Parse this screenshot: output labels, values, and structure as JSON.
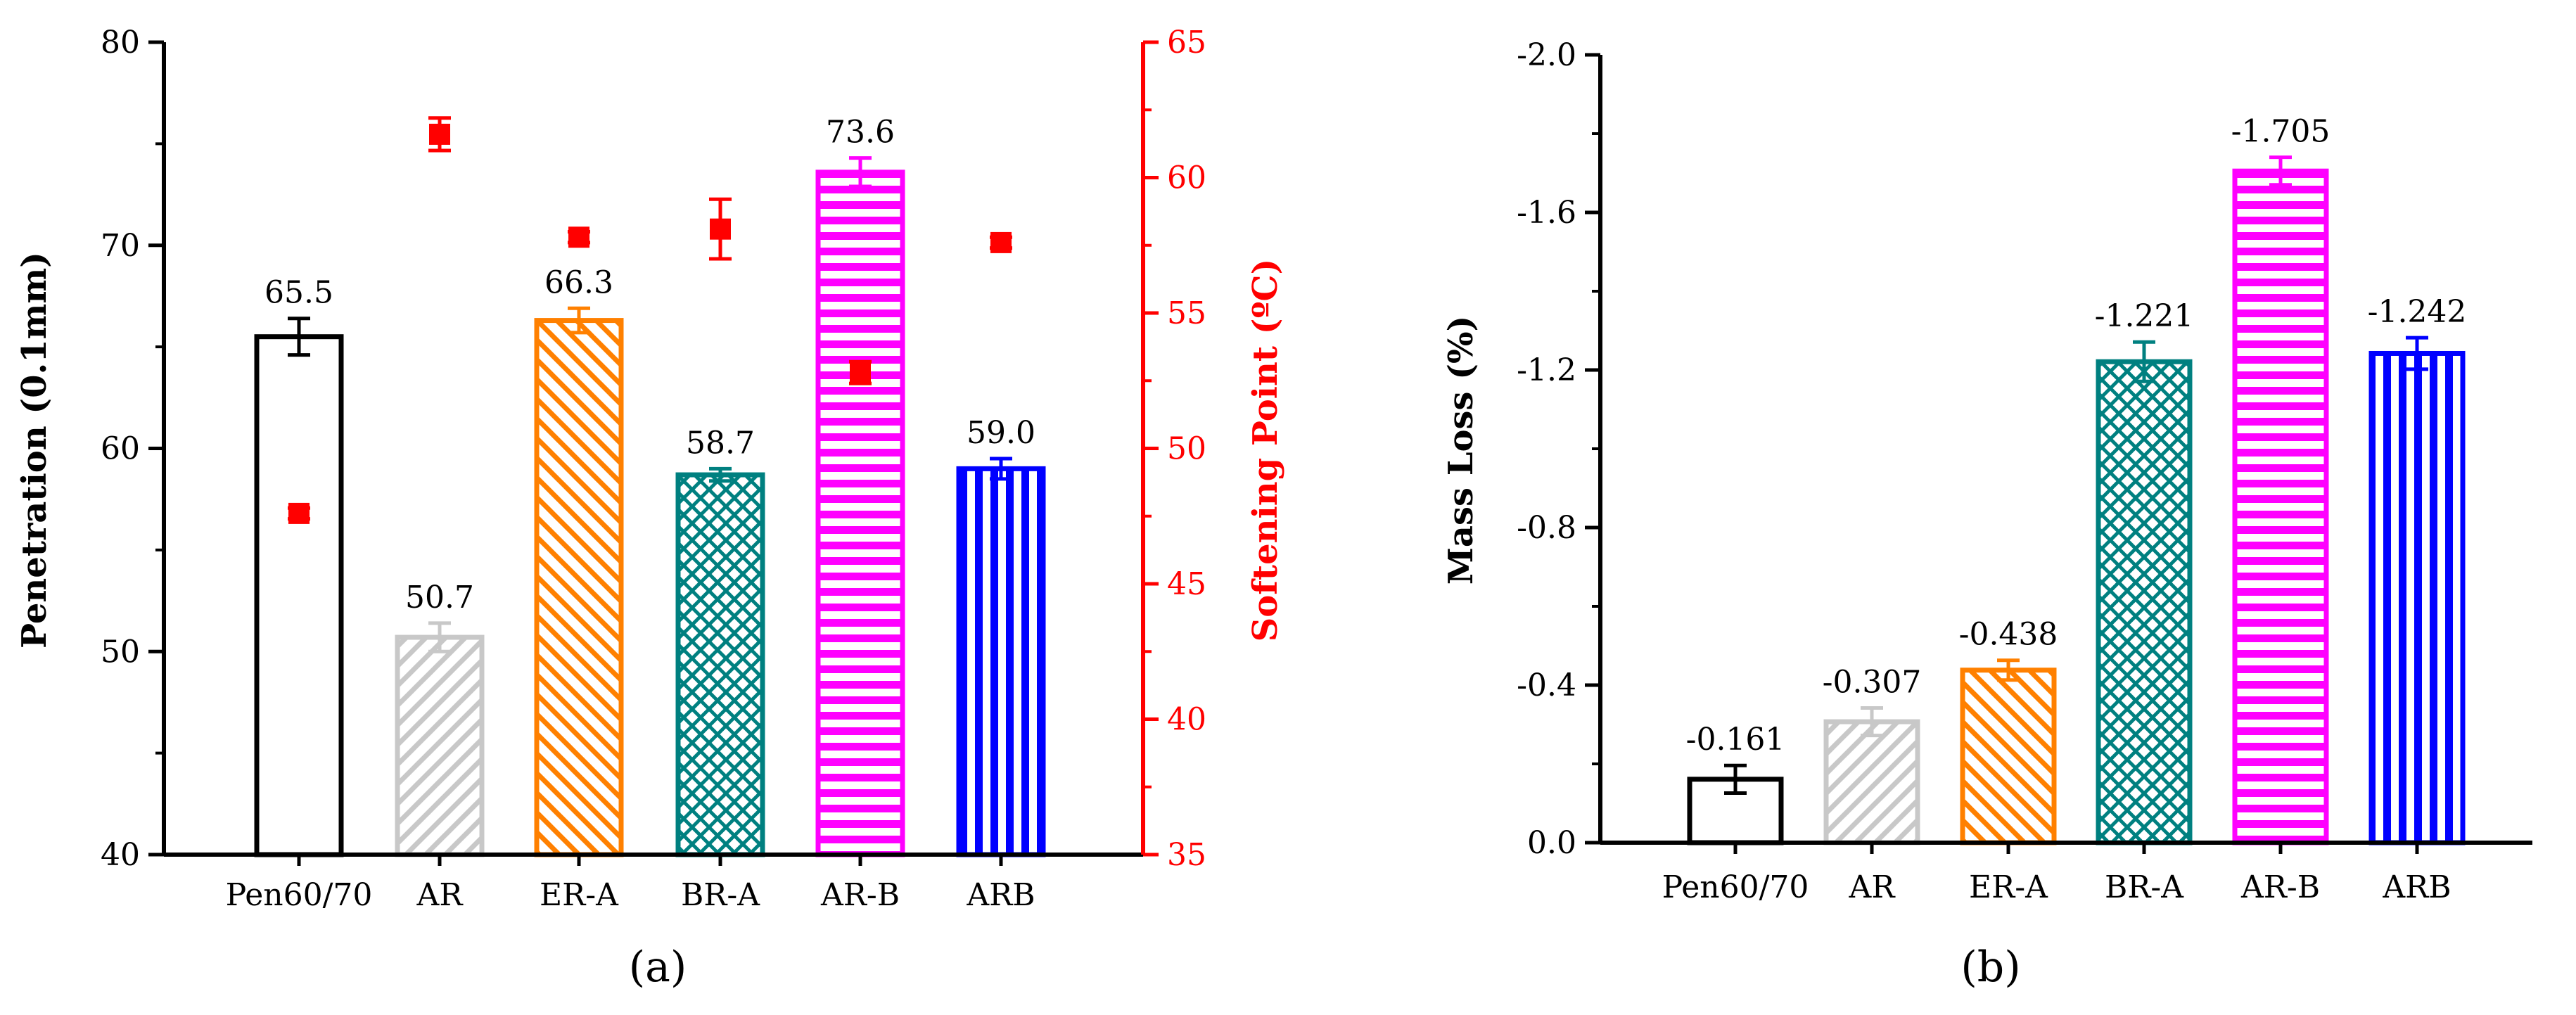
{
  "chart_data": [
    {
      "type": "bar",
      "panel_label": "(a)",
      "categories": [
        "Pen60/70",
        "AR",
        "ER-A",
        "BR-A",
        "AR-B",
        "ARB"
      ],
      "series": [
        {
          "name": "Penetration",
          "axis": "left",
          "values": [
            65.5,
            50.7,
            66.3,
            58.7,
            73.6,
            59.0
          ],
          "value_labels": [
            "65.5",
            "50.7",
            "66.3",
            "58.7",
            "73.6",
            "59.0"
          ],
          "errors": [
            0.9,
            0.7,
            0.6,
            0.3,
            0.7,
            0.5
          ]
        },
        {
          "name": "Softening Point",
          "type": "scatter",
          "axis": "right",
          "values": [
            47.6,
            61.6,
            57.8,
            58.1,
            52.8,
            57.6
          ],
          "errors": [
            0.2,
            0.6,
            0.2,
            1.1,
            0.4,
            0.2
          ]
        }
      ],
      "ylabel": "Penetration (0.1mm)",
      "ylim": [
        40,
        80
      ],
      "yticks": [
        "40",
        "50",
        "60",
        "70",
        "80"
      ],
      "y2label": "Softening Point (ºC)",
      "y2lim": [
        35,
        65
      ],
      "y2ticks": [
        "35",
        "40",
        "45",
        "50",
        "55",
        "60",
        "65"
      ],
      "colors": {
        "bars": [
          "#000000",
          "#c8c8c8",
          "#ff8000",
          "#008080",
          "#ff00ff",
          "#0000ff"
        ],
        "secondary": "#ff0000"
      },
      "patterns": [
        "none",
        "diag-up",
        "diag-down",
        "crosshatch",
        "horizontal",
        "vertical"
      ]
    },
    {
      "type": "bar",
      "panel_label": "(b)",
      "categories": [
        "Pen60/70",
        "AR",
        "ER-A",
        "BR-A",
        "AR-B",
        "ARB"
      ],
      "series": [
        {
          "name": "Mass Loss",
          "values": [
            -0.161,
            -0.307,
            -0.438,
            -1.221,
            -1.705,
            -1.242
          ],
          "value_labels": [
            "-0.161",
            "-0.307",
            "-0.438",
            "-1.221",
            "-1.705",
            "-1.242"
          ],
          "errors": [
            0.035,
            0.035,
            0.025,
            0.05,
            0.035,
            0.04
          ]
        }
      ],
      "ylabel": "Mass Loss (%)",
      "ylim": [
        0.0,
        -2.0
      ],
      "yticks": [
        "0.0",
        "-0.4",
        "-0.8",
        "-1.2",
        "-1.6",
        "-2.0"
      ],
      "colors": {
        "bars": [
          "#000000",
          "#c8c8c8",
          "#ff8000",
          "#008080",
          "#ff00ff",
          "#0000ff"
        ]
      },
      "patterns": [
        "none",
        "diag-up",
        "diag-down",
        "crosshatch",
        "horizontal",
        "vertical"
      ]
    }
  ]
}
